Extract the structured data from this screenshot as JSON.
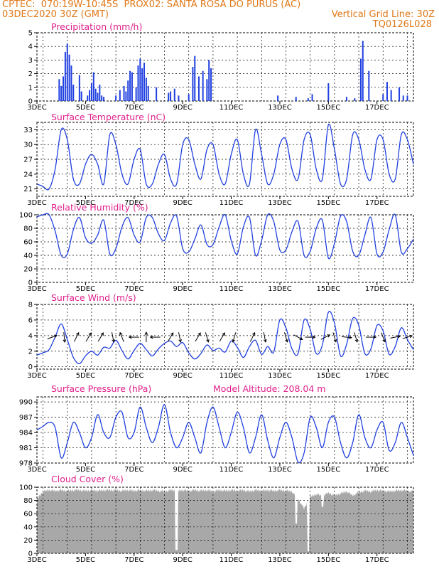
{
  "header": {
    "line1_left": "CPTEC:  070:19W-10:45S  PROX02: SANTA ROSA DO PURUS (AC)",
    "line2_left": "03DEC2020 30Z (GMT)",
    "line2_right": "Vertical Grid Line: 30Z",
    "line3_right": "TQ0126L028"
  },
  "colors": {
    "header": "#e07818",
    "title": "#e0208c",
    "series": "#2040e0",
    "cloud": "#a8a8a8",
    "arrow": "#000000"
  },
  "chart_data": [
    {
      "type": "bar",
      "title": "Precipitation (mm/h)",
      "x_tick_labels": [
        "3DEC",
        "5DEC",
        "7DEC",
        "9DEC",
        "11DEC",
        "13DEC",
        "15DEC",
        "17DEC"
      ],
      "y_ticks": [
        0,
        1,
        2,
        3,
        4,
        5
      ],
      "ylim": [
        0,
        5
      ],
      "xlim_hours": [
        0,
        372
      ],
      "x_hours": [
        22,
        24,
        26,
        28,
        30,
        32,
        34,
        36,
        42,
        44,
        50,
        52,
        54,
        56,
        58,
        60,
        62,
        64,
        66,
        78,
        82,
        86,
        88,
        90,
        92,
        94,
        98,
        100,
        102,
        104,
        106,
        108,
        110,
        118,
        130,
        132,
        136,
        140,
        150,
        154,
        156,
        160,
        164,
        168,
        170,
        172,
        238,
        256,
        268,
        272,
        288,
        306,
        314,
        320,
        322,
        328,
        342,
        346,
        350,
        358,
        362,
        366
      ],
      "values": [
        1.6,
        1.1,
        1.8,
        3.6,
        4.2,
        3.4,
        2.6,
        1.2,
        1.9,
        0.7,
        0.4,
        0.8,
        1.3,
        2.1,
        0.9,
        0.6,
        1.2,
        0.4,
        0.3,
        0.4,
        0.8,
        1.1,
        0.7,
        1.5,
        2.2,
        2.1,
        1.0,
        2.6,
        3.1,
        2.4,
        2.8,
        1.7,
        1.1,
        1.0,
        0.6,
        0.7,
        0.9,
        0.4,
        0.5,
        2.5,
        3.3,
        1.8,
        2.2,
        1.6,
        3.0,
        2.4,
        0.4,
        0.3,
        0.2,
        0.5,
        1.3,
        0.3,
        0.2,
        3.1,
        4.4,
        2.2,
        0.5,
        1.4,
        0.8,
        1.0,
        0.4,
        0.4
      ]
    },
    {
      "type": "line",
      "title": "Surface Temperature (nC)",
      "x_tick_labels": [
        "3DEC",
        "5DEC",
        "7DEC",
        "9DEC",
        "11DEC",
        "13DEC",
        "15DEC",
        "17DEC"
      ],
      "y_ticks": [
        21,
        24,
        27,
        30,
        33
      ],
      "ylim": [
        19.5,
        34.5
      ],
      "xlim_hours": [
        0,
        372
      ],
      "x_hours": [
        0,
        6,
        12,
        18,
        24,
        30,
        36,
        42,
        48,
        54,
        60,
        66,
        72,
        78,
        84,
        90,
        96,
        102,
        108,
        114,
        120,
        126,
        132,
        138,
        144,
        150,
        156,
        162,
        168,
        174,
        180,
        186,
        192,
        198,
        204,
        210,
        216,
        222,
        228,
        234,
        240,
        246,
        252,
        258,
        264,
        270,
        276,
        282,
        288,
        294,
        300,
        306,
        312,
        318,
        324,
        330,
        336,
        342,
        348,
        354,
        360,
        366,
        372
      ],
      "values": [
        22,
        21.5,
        21,
        25,
        33,
        31,
        23,
        22,
        26,
        28,
        26,
        22,
        32,
        30,
        24,
        22,
        27,
        29,
        22,
        22,
        26,
        28,
        23,
        22,
        30,
        31,
        26,
        23,
        29,
        30,
        24,
        22,
        28,
        31,
        24,
        22,
        33,
        28,
        22,
        24,
        30,
        31,
        25,
        23,
        31,
        32,
        25,
        23,
        34,
        29,
        22,
        23,
        32,
        31,
        25,
        23,
        31,
        31,
        24,
        23,
        32,
        31,
        26
      ]
    },
    {
      "type": "line",
      "title": "Relative Humidity (%)",
      "x_tick_labels": [
        "3DEC",
        "5DEC",
        "7DEC",
        "9DEC",
        "11DEC",
        "13DEC",
        "15DEC",
        "17DEC"
      ],
      "y_ticks": [
        0,
        20,
        40,
        60,
        80,
        100
      ],
      "ylim": [
        0,
        100
      ],
      "xlim_hours": [
        0,
        372
      ],
      "x_hours": [
        0,
        6,
        12,
        18,
        24,
        30,
        36,
        42,
        48,
        54,
        60,
        66,
        72,
        78,
        84,
        90,
        96,
        102,
        108,
        114,
        120,
        126,
        132,
        138,
        144,
        150,
        156,
        162,
        168,
        174,
        180,
        186,
        192,
        198,
        204,
        210,
        216,
        222,
        228,
        234,
        240,
        246,
        252,
        258,
        264,
        270,
        276,
        282,
        288,
        294,
        300,
        306,
        312,
        318,
        324,
        330,
        336,
        342,
        348,
        354,
        360,
        366,
        372
      ],
      "values": [
        97,
        100,
        100,
        76,
        40,
        42,
        78,
        96,
        66,
        58,
        70,
        92,
        42,
        50,
        82,
        96,
        70,
        60,
        96,
        96,
        72,
        62,
        88,
        98,
        50,
        45,
        64,
        85,
        56,
        56,
        82,
        100,
        62,
        42,
        82,
        96,
        40,
        62,
        100,
        90,
        48,
        48,
        75,
        90,
        40,
        46,
        80,
        92,
        36,
        58,
        98,
        90,
        46,
        40,
        70,
        96,
        42,
        45,
        78,
        100,
        45,
        50,
        64
      ]
    },
    {
      "type": "line",
      "title": "Surface Wind (m/s)",
      "x_tick_labels": [
        "3DEC",
        "5DEC",
        "7DEC",
        "9DEC",
        "11DEC",
        "13DEC",
        "15DEC",
        "17DEC"
      ],
      "y_ticks": [
        0,
        2,
        4,
        6,
        8
      ],
      "ylim": [
        -0.3,
        8
      ],
      "xlim_hours": [
        0,
        372
      ],
      "x_hours": [
        0,
        6,
        12,
        18,
        24,
        30,
        36,
        42,
        48,
        54,
        60,
        66,
        72,
        78,
        84,
        90,
        96,
        102,
        108,
        114,
        120,
        126,
        132,
        138,
        144,
        150,
        156,
        162,
        168,
        174,
        180,
        186,
        192,
        198,
        204,
        210,
        216,
        222,
        228,
        234,
        240,
        246,
        252,
        258,
        264,
        270,
        276,
        282,
        288,
        294,
        300,
        306,
        312,
        318,
        324,
        330,
        336,
        342,
        348,
        354,
        360,
        366,
        372
      ],
      "values": [
        1.5,
        1.8,
        2.2,
        3.8,
        5.5,
        3.5,
        1.2,
        0.4,
        1.4,
        2.0,
        1.5,
        2.5,
        2.4,
        3.4,
        2.1,
        1.0,
        2.1,
        3.0,
        2.2,
        1.4,
        2.3,
        3.0,
        3.3,
        2.6,
        3.1,
        1.8,
        1.0,
        1.7,
        2.8,
        2.1,
        2.4,
        1.9,
        3.3,
        2.5,
        1.2,
        2.6,
        3.4,
        1.6,
        2.6,
        1.9,
        6.0,
        5.0,
        2.3,
        1.7,
        6.0,
        4.8,
        1.7,
        2.8,
        7.0,
        5.6,
        1.4,
        2.9,
        6.2,
        5.3,
        1.7,
        2.3,
        5.3,
        4.6,
        1.6,
        2.6,
        5.0,
        3.5,
        2.2
      ],
      "vector_arrows": [
        {
          "x_hour": 15,
          "u": 1,
          "v": 0.35
        },
        {
          "x_hour": 27,
          "u": 0.1,
          "v": -1
        },
        {
          "x_hour": 39,
          "u": 0.5,
          "v": 1
        },
        {
          "x_hour": 51,
          "u": 0.6,
          "v": 1
        },
        {
          "x_hour": 63,
          "u": 0.6,
          "v": 1
        },
        {
          "x_hour": 75,
          "u": 0.2,
          "v": -1
        },
        {
          "x_hour": 84,
          "u": -0.4,
          "v": 1
        },
        {
          "x_hour": 96,
          "u": -1,
          "v": 0
        },
        {
          "x_hour": 108,
          "u": 0,
          "v": 1
        },
        {
          "x_hour": 117,
          "u": -1,
          "v": 0
        },
        {
          "x_hour": 132,
          "u": 0.6,
          "v": 1
        },
        {
          "x_hour": 141,
          "u": 0.2,
          "v": -1
        },
        {
          "x_hour": 159,
          "u": 0.6,
          "v": 1
        },
        {
          "x_hour": 168,
          "u": 0.3,
          "v": -1
        },
        {
          "x_hour": 183,
          "u": 0.6,
          "v": 1
        },
        {
          "x_hour": 195,
          "u": -0.3,
          "v": -1
        },
        {
          "x_hour": 213,
          "u": 0.5,
          "v": 1
        },
        {
          "x_hour": 225,
          "u": 0.2,
          "v": -1
        },
        {
          "x_hour": 246,
          "u": 0.3,
          "v": -1
        },
        {
          "x_hour": 258,
          "u": 0.9,
          "v": -0.5
        },
        {
          "x_hour": 270,
          "u": 1,
          "v": 0
        },
        {
          "x_hour": 285,
          "u": 0.9,
          "v": 0.45
        },
        {
          "x_hour": 294,
          "u": 0.3,
          "v": -1
        },
        {
          "x_hour": 306,
          "u": 1,
          "v": -0.1
        },
        {
          "x_hour": 315,
          "u": 0.3,
          "v": -1
        },
        {
          "x_hour": 330,
          "u": 1,
          "v": 0
        },
        {
          "x_hour": 342,
          "u": 0.4,
          "v": -1
        },
        {
          "x_hour": 354,
          "u": 1,
          "v": 0.2
        },
        {
          "x_hour": 366,
          "u": 1,
          "v": 0.3
        }
      ]
    },
    {
      "type": "line",
      "title": "Surface Pressure (hPa)",
      "annotation": "Model Altitude: 208.04 m",
      "x_tick_labels": [
        "3DEC",
        "5DEC",
        "7DEC",
        "9DEC",
        "11DEC",
        "13DEC",
        "15DEC",
        "17DEC"
      ],
      "y_ticks": [
        978,
        981,
        984,
        987,
        990
      ],
      "ylim": [
        978,
        991
      ],
      "xlim_hours": [
        0,
        372
      ],
      "x_hours": [
        0,
        6,
        12,
        18,
        24,
        30,
        36,
        42,
        48,
        54,
        60,
        66,
        72,
        78,
        84,
        90,
        96,
        102,
        108,
        114,
        120,
        126,
        132,
        138,
        144,
        150,
        156,
        162,
        168,
        174,
        180,
        186,
        192,
        198,
        204,
        210,
        216,
        222,
        228,
        234,
        240,
        246,
        252,
        258,
        264,
        270,
        276,
        282,
        288,
        294,
        300,
        306,
        312,
        318,
        324,
        330,
        336,
        342,
        348,
        354,
        360,
        366,
        372
      ],
      "values": [
        984.5,
        985.2,
        986,
        985,
        979,
        982,
        986,
        984,
        981,
        983,
        987.5,
        984,
        983,
        987,
        988,
        983,
        984,
        989,
        985,
        982,
        985,
        989.5,
        984,
        981,
        983,
        986,
        983,
        980,
        986,
        989,
        985,
        981,
        984,
        988,
        985,
        980,
        983,
        987.5,
        982.5,
        979,
        983,
        986,
        983,
        978.2,
        980,
        987,
        985,
        981,
        986,
        987,
        982,
        979,
        982,
        987.5,
        983,
        981,
        984.5,
        986,
        980.5,
        982,
        986,
        983,
        979.5
      ]
    },
    {
      "type": "area",
      "title": "Cloud Cover (%)",
      "x_tick_labels": [
        "3DEC",
        "5DEC",
        "7DEC",
        "9DEC",
        "11DEC",
        "13DEC",
        "15DEC",
        "17DEC"
      ],
      "y_ticks": [
        0,
        20,
        40,
        60,
        80,
        100
      ],
      "ylim": [
        0,
        100
      ],
      "xlim_hours": [
        0,
        372
      ],
      "x_hours": [
        0,
        6,
        12,
        18,
        24,
        30,
        36,
        42,
        48,
        54,
        60,
        66,
        72,
        78,
        84,
        90,
        96,
        102,
        108,
        114,
        120,
        126,
        132,
        138,
        144,
        150,
        156,
        162,
        168,
        174,
        180,
        186,
        192,
        198,
        204,
        210,
        216,
        222,
        228,
        234,
        240,
        246,
        252,
        258,
        264,
        270,
        276,
        282,
        288,
        294,
        300,
        306,
        312,
        318,
        324,
        330,
        336,
        342,
        348,
        354,
        360,
        366,
        372
      ],
      "values": [
        85,
        96,
        98,
        97,
        98,
        97,
        98,
        98,
        97,
        98,
        97,
        98,
        98,
        98,
        97,
        98,
        97,
        98,
        97,
        98,
        97,
        96,
        98,
        97,
        98,
        97,
        98,
        97,
        98,
        96,
        98,
        97,
        98,
        97,
        98,
        96,
        98,
        97,
        98,
        97,
        98,
        97,
        96,
        85,
        70,
        88,
        92,
        89,
        94,
        90,
        93,
        96,
        90,
        95,
        97,
        96,
        98,
        97,
        96,
        97,
        98,
        97,
        96
      ],
      "dips": [
        {
          "x_hour": 138,
          "value": 5
        },
        {
          "x_hour": 256,
          "value": 45
        },
        {
          "x_hour": 268,
          "value": 3
        },
        {
          "x_hour": 282,
          "value": 70
        }
      ]
    }
  ]
}
